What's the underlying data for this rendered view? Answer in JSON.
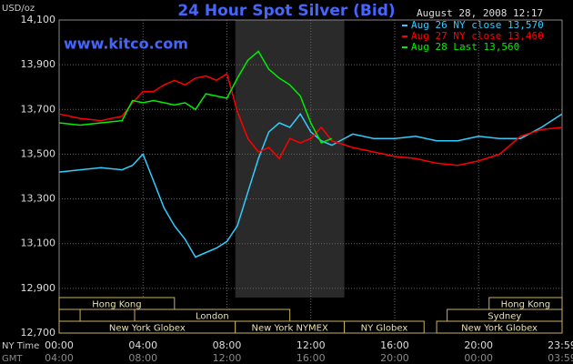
{
  "chart_data": {
    "type": "line",
    "title": "24 Hour Spot Silver (Bid)",
    "subtitle": "August 28, 2008 12:17",
    "watermark": "www.kitco.com",
    "y_label": "USD/oz",
    "x_row_labels": [
      "NY Time",
      "GMT"
    ],
    "x": [
      0,
      1,
      2,
      3,
      3.5,
      4,
      4.5,
      5,
      5.5,
      6,
      6.5,
      7,
      7.5,
      8,
      8.5,
      9,
      9.5,
      10,
      10.5,
      11,
      11.5,
      12,
      12.5,
      13,
      14,
      15,
      16,
      17,
      18,
      19,
      20,
      21,
      22,
      23,
      23.98
    ],
    "series": [
      {
        "name": "Aug 26 NY close 13,570",
        "color": "#33ccff",
        "values": [
          13420,
          13430,
          13440,
          13430,
          13450,
          13500,
          13380,
          13260,
          13180,
          13120,
          13040,
          13060,
          13080,
          13110,
          13180,
          13330,
          13480,
          13600,
          13640,
          13620,
          13680,
          13600,
          13560,
          13540,
          13590,
          13570,
          13570,
          13580,
          13560,
          13560,
          13580,
          13570,
          13570,
          13620,
          13680
        ]
      },
      {
        "name": "Aug 27 NY close 13,460",
        "color": "#ff0000",
        "values": [
          13680,
          13660,
          13650,
          13670,
          13730,
          13780,
          13780,
          13810,
          13830,
          13810,
          13840,
          13850,
          13830,
          13860,
          13690,
          13570,
          13510,
          13530,
          13480,
          13570,
          13550,
          13570,
          13620,
          13560,
          13530,
          13510,
          13490,
          13480,
          13460,
          13450,
          13470,
          13500,
          13580,
          13610,
          13620
        ]
      },
      {
        "name": "Aug 28 Last 13,560",
        "color": "#00ee00",
        "values": [
          13640,
          13630,
          13640,
          13650,
          13740,
          13730,
          13740,
          13730,
          13720,
          13730,
          13700,
          13770,
          13760,
          13750,
          13840,
          13920,
          13960,
          13880,
          13840,
          13810,
          13760,
          13640,
          13550,
          13570,
          null,
          null,
          null,
          null,
          null,
          null,
          null,
          null,
          null,
          null,
          null
        ]
      }
    ],
    "xlim": [
      0,
      23.98
    ],
    "xticks": [
      {
        "value": 0,
        "label": "00:00"
      },
      {
        "value": 4,
        "label": "04:00"
      },
      {
        "value": 8,
        "label": "08:00"
      },
      {
        "value": 12,
        "label": "12:00"
      },
      {
        "value": 16,
        "label": "16:00"
      },
      {
        "value": 20,
        "label": "20:00"
      },
      {
        "value": 23.98,
        "label": "23:59"
      }
    ],
    "gmt_tick_labels": [
      "04:00",
      "08:00",
      "12:00",
      "16:00",
      "20:00",
      "00:00",
      "03:59"
    ],
    "ylim": [
      12700,
      14100
    ],
    "yticks": [
      {
        "value": 12700,
        "label": "12,700"
      },
      {
        "value": 12900,
        "label": "12,900"
      },
      {
        "value": 13100,
        "label": "13,100"
      },
      {
        "value": 13300,
        "label": "13,300"
      },
      {
        "value": 13500,
        "label": "13,500"
      },
      {
        "value": 13700,
        "label": "13,700"
      },
      {
        "value": 13900,
        "label": "13,900"
      },
      {
        "value": 14100,
        "label": "14,100"
      }
    ],
    "grid": true,
    "session_rows": [
      [
        {
          "name": "Hong Kong",
          "start": 0,
          "end": 5.5
        },
        {
          "name": "Hong Kong",
          "start": 20.5,
          "end": 23.98
        }
      ],
      [
        {
          "name": null,
          "start": 0,
          "end": 1
        },
        {
          "name": "London",
          "start": 3.6,
          "end": 11
        },
        {
          "name": "Sydney",
          "start": 18.5,
          "end": 23.98
        }
      ],
      [
        {
          "name": "New York Globex",
          "start": 0,
          "end": 8.4
        },
        {
          "name": "New York NYMEX",
          "start": 8.4,
          "end": 13.6,
          "shade": true
        },
        {
          "name": "NY Globex",
          "start": 13.6,
          "end": 17.4
        },
        {
          "name": "New York Globex",
          "start": 18,
          "end": 23.98
        }
      ]
    ]
  }
}
